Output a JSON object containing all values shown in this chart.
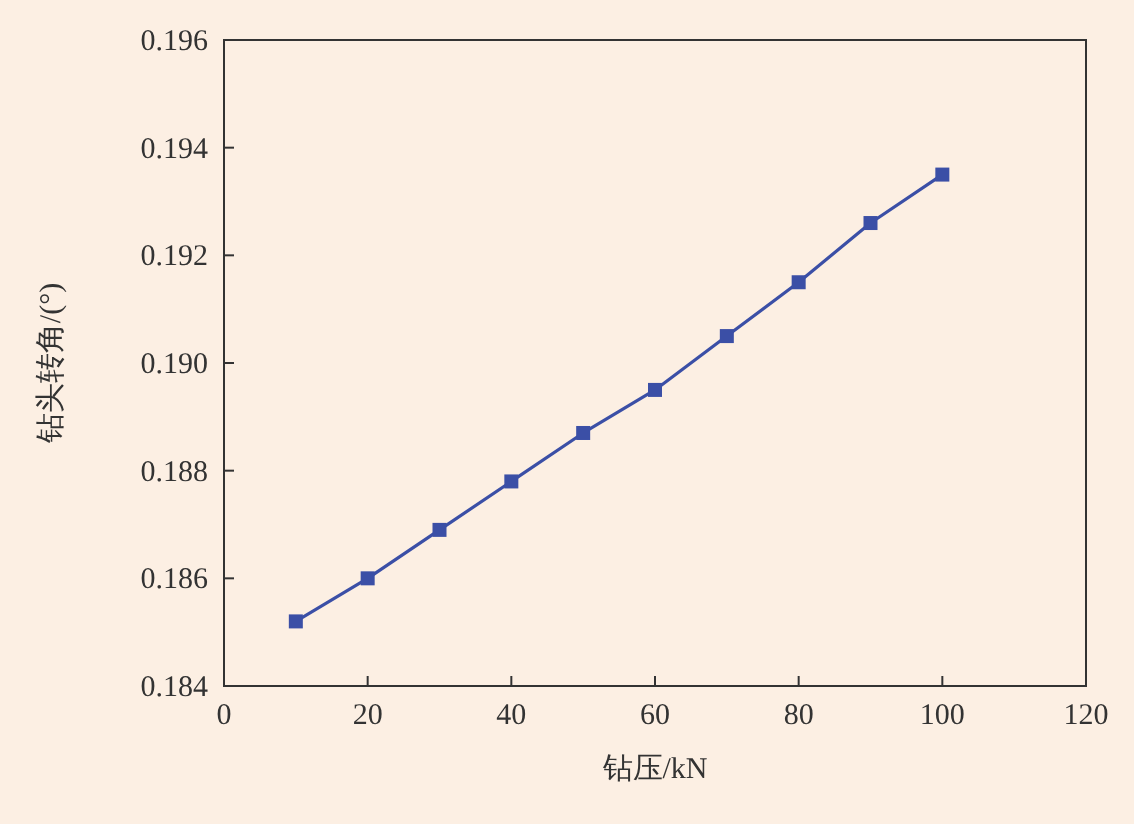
{
  "chart_data": {
    "type": "line",
    "xlabel": "钻压/kN",
    "ylabel": "钻头转角/(°)",
    "x": [
      10,
      20,
      30,
      40,
      50,
      60,
      70,
      80,
      90,
      100
    ],
    "series": [
      {
        "color": "#3b4fa6",
        "values": [
          0.1852,
          0.186,
          0.1869,
          0.1878,
          0.1887,
          0.1895,
          0.1905,
          0.1915,
          0.1926,
          0.1935
        ]
      }
    ],
    "xlim": [
      0,
      120
    ],
    "ylim": [
      0.184,
      0.196
    ],
    "xticks": [
      0,
      20,
      40,
      60,
      80,
      100,
      120
    ],
    "yticks": [
      {
        "value": 0.184,
        "label": "0.184"
      },
      {
        "value": 0.186,
        "label": "0.186"
      },
      {
        "value": 0.188,
        "label": "0.188"
      },
      {
        "value": 0.19,
        "label": "0.190"
      },
      {
        "value": 0.192,
        "label": "0.192"
      },
      {
        "value": 0.194,
        "label": "0.194"
      },
      {
        "value": 0.196,
        "label": "0.196"
      }
    ],
    "marker": "square",
    "line_style": "solid"
  }
}
